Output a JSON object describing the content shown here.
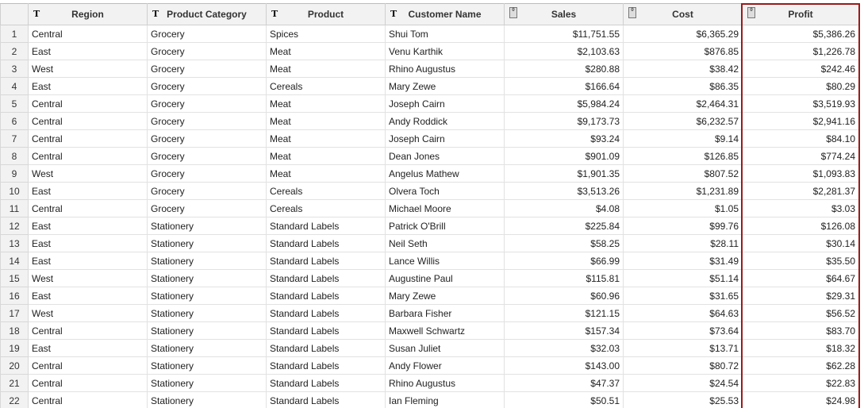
{
  "columns": [
    {
      "label": "",
      "type": "index"
    },
    {
      "label": "Region",
      "type": "text",
      "icon": "text-type-icon"
    },
    {
      "label": "Product Category",
      "type": "text",
      "icon": "text-type-icon"
    },
    {
      "label": "Product",
      "type": "text",
      "icon": "text-type-icon"
    },
    {
      "label": "Customer Name",
      "type": "text",
      "icon": "text-type-icon"
    },
    {
      "label": "Sales",
      "type": "number",
      "icon": "numeric-type-icon"
    },
    {
      "label": "Cost",
      "type": "number",
      "icon": "numeric-type-icon"
    },
    {
      "label": "Profit",
      "type": "number",
      "icon": "numeric-type-icon",
      "selected": true
    }
  ],
  "highlight_color": "#9a1b1b",
  "rows": [
    [
      "1",
      "Central",
      "Grocery",
      "Spices",
      "Shui Tom",
      "$11,751.55",
      "$6,365.29",
      "$5,386.26"
    ],
    [
      "2",
      "East",
      "Grocery",
      "Meat",
      "Venu Karthik",
      "$2,103.63",
      "$876.85",
      "$1,226.78"
    ],
    [
      "3",
      "West",
      "Grocery",
      "Meat",
      "Rhino Augustus",
      "$280.88",
      "$38.42",
      "$242.46"
    ],
    [
      "4",
      "East",
      "Grocery",
      "Cereals",
      "Mary Zewe",
      "$166.64",
      "$86.35",
      "$80.29"
    ],
    [
      "5",
      "Central",
      "Grocery",
      "Meat",
      "Joseph Cairn",
      "$5,984.24",
      "$2,464.31",
      "$3,519.93"
    ],
    [
      "6",
      "Central",
      "Grocery",
      "Meat",
      "Andy Roddick",
      "$9,173.73",
      "$6,232.57",
      "$2,941.16"
    ],
    [
      "7",
      "Central",
      "Grocery",
      "Meat",
      "Joseph Cairn",
      "$93.24",
      "$9.14",
      "$84.10"
    ],
    [
      "8",
      "Central",
      "Grocery",
      "Meat",
      "Dean Jones",
      "$901.09",
      "$126.85",
      "$774.24"
    ],
    [
      "9",
      "West",
      "Grocery",
      "Meat",
      "Angelus Mathew",
      "$1,901.35",
      "$807.52",
      "$1,093.83"
    ],
    [
      "10",
      "East",
      "Grocery",
      "Cereals",
      "Olvera Toch",
      "$3,513.26",
      "$1,231.89",
      "$2,281.37"
    ],
    [
      "11",
      "Central",
      "Grocery",
      "Cereals",
      "Michael Moore",
      "$4.08",
      "$1.05",
      "$3.03"
    ],
    [
      "12",
      "East",
      "Stationery",
      "Standard Labels",
      "Patrick O'Brill",
      "$225.84",
      "$99.76",
      "$126.08"
    ],
    [
      "13",
      "East",
      "Stationery",
      "Standard Labels",
      "Neil Seth",
      "$58.25",
      "$28.11",
      "$30.14"
    ],
    [
      "14",
      "East",
      "Stationery",
      "Standard Labels",
      "Lance Willis",
      "$66.99",
      "$31.49",
      "$35.50"
    ],
    [
      "15",
      "West",
      "Stationery",
      "Standard Labels",
      "Augustine Paul",
      "$115.81",
      "$51.14",
      "$64.67"
    ],
    [
      "16",
      "East",
      "Stationery",
      "Standard Labels",
      "Mary Zewe",
      "$60.96",
      "$31.65",
      "$29.31"
    ],
    [
      "17",
      "West",
      "Stationery",
      "Standard Labels",
      "Barbara Fisher",
      "$121.15",
      "$64.63",
      "$56.52"
    ],
    [
      "18",
      "Central",
      "Stationery",
      "Standard Labels",
      "Maxwell Schwartz",
      "$157.34",
      "$73.64",
      "$83.70"
    ],
    [
      "19",
      "East",
      "Stationery",
      "Standard Labels",
      "Susan Juliet",
      "$32.03",
      "$13.71",
      "$18.32"
    ],
    [
      "20",
      "Central",
      "Stationery",
      "Standard Labels",
      "Andy Flower",
      "$143.00",
      "$80.72",
      "$62.28"
    ],
    [
      "21",
      "Central",
      "Stationery",
      "Standard Labels",
      "Rhino Augustus",
      "$47.37",
      "$24.54",
      "$22.83"
    ],
    [
      "22",
      "Central",
      "Stationery",
      "Standard Labels",
      "Ian Fleming",
      "$50.51",
      "$25.53",
      "$24.98"
    ]
  ]
}
